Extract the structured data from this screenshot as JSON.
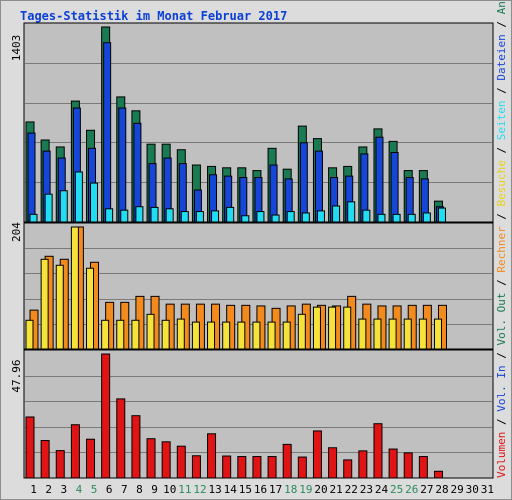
{
  "title": "Tages-Statistik im Monat Februar 2017",
  "colors": {
    "title": "#0b3fd6",
    "anfragen": "#1a7a52",
    "dateien": "#1646d8",
    "seiten": "#22ddf2",
    "besuche": "#f5e23a",
    "rechner": "#f28a1e",
    "volumen": "#e01414",
    "plot_bg": "#c0c0c0",
    "outer_bg": "#dcdcdc",
    "weekend": "#2a8a5a",
    "weekday": "#000000"
  },
  "panels": [
    {
      "id": "top",
      "max_label": "1403"
    },
    {
      "id": "mid",
      "max_label": "204"
    },
    {
      "id": "bottom",
      "max_label": "47.96"
    }
  ],
  "legend": {
    "volumen": "Volumen",
    "vol_in": "Vol. In",
    "vol_out": "Vol. Out",
    "rechner": "Rechner",
    "besuche": "Besuche",
    "seiten": "Seiten",
    "dateien": "Dateien",
    "anfragen": "Anfragen",
    "sep": " / "
  },
  "chart_data": {
    "type": "bar",
    "title": "Tages-Statistik im Monat Februar 2017",
    "categories": [
      "1",
      "2",
      "3",
      "4",
      "5",
      "6",
      "7",
      "8",
      "9",
      "10",
      "11",
      "12",
      "13",
      "14",
      "15",
      "16",
      "17",
      "18",
      "19",
      "20",
      "21",
      "22",
      "23",
      "24",
      "25",
      "26",
      "27",
      "28",
      "29",
      "30",
      "31"
    ],
    "weekend_days": [
      "4",
      "5",
      "11",
      "12",
      "18",
      "19",
      "25",
      "26"
    ],
    "top": {
      "ymax": 1403,
      "series": [
        {
          "name": "Anfragen",
          "values": [
            720,
            590,
            540,
            870,
            660,
            1403,
            900,
            800,
            560,
            560,
            520,
            410,
            400,
            390,
            390,
            370,
            530,
            380,
            690,
            600,
            390,
            400,
            540,
            670,
            580,
            370,
            370,
            150,
            0,
            0,
            0
          ]
        },
        {
          "name": "Dateien",
          "values": [
            640,
            510,
            460,
            820,
            530,
            1290,
            820,
            710,
            420,
            460,
            420,
            230,
            340,
            330,
            320,
            320,
            410,
            310,
            570,
            510,
            320,
            330,
            490,
            610,
            500,
            320,
            310,
            110,
            0,
            0,
            0
          ]
        },
        {
          "name": "Seiten",
          "values": [
            55,
            200,
            225,
            360,
            280,
            95,
            85,
            110,
            105,
            95,
            75,
            75,
            80,
            105,
            45,
            75,
            50,
            75,
            65,
            80,
            115,
            145,
            85,
            55,
            55,
            55,
            65,
            100,
            0,
            0,
            0
          ]
        }
      ]
    },
    "mid": {
      "ymax": 204,
      "series": [
        {
          "name": "Besuche",
          "values": [
            48,
            150,
            140,
            204,
            135,
            48,
            48,
            48,
            58,
            48,
            50,
            45,
            45,
            45,
            45,
            45,
            45,
            45,
            58,
            70,
            70,
            70,
            50,
            50,
            50,
            50,
            50,
            50,
            0,
            0,
            0
          ]
        },
        {
          "name": "Rechner",
          "values": [
            65,
            155,
            150,
            204,
            145,
            78,
            78,
            88,
            88,
            75,
            75,
            75,
            75,
            73,
            73,
            72,
            68,
            72,
            75,
            73,
            72,
            88,
            75,
            72,
            72,
            73,
            73,
            73,
            0,
            0,
            0
          ]
        }
      ]
    },
    "bottom": {
      "ymax": 47.96,
      "series": [
        {
          "name": "Volumen",
          "values": [
            23.6,
            14.5,
            10.6,
            20.6,
            15.0,
            47.96,
            30.6,
            24.1,
            15.2,
            14.0,
            12.3,
            8.6,
            17.1,
            8.5,
            8.3,
            8.3,
            8.3,
            13.0,
            8.1,
            18.2,
            11.7,
            7.0,
            10.5,
            21.0,
            11.2,
            9.7,
            8.3,
            2.6,
            0,
            0,
            0
          ]
        }
      ]
    }
  }
}
